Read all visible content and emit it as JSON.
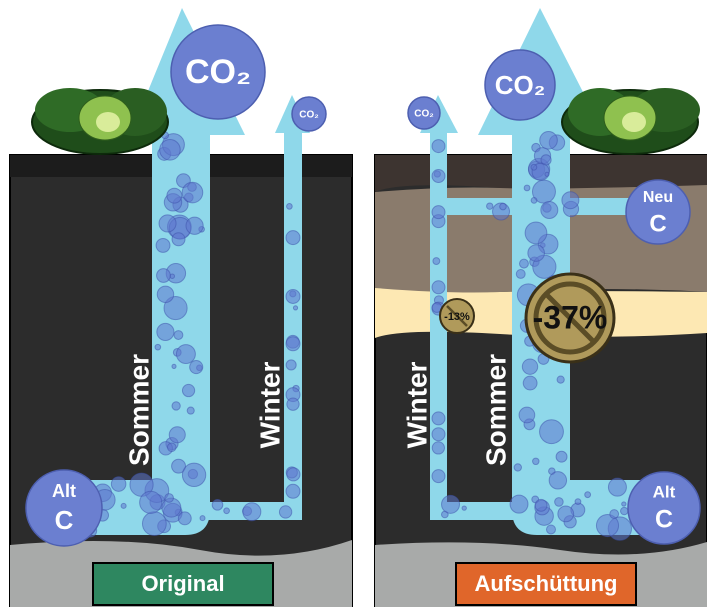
{
  "panels": [
    {
      "label": "Original",
      "co2_large": "CO₂",
      "co2_small": "CO₂",
      "pool_old": [
        "Alt",
        "C"
      ],
      "summer": "Sommer",
      "winter": "Winter"
    },
    {
      "label": "Aufschüttung",
      "co2_large": "CO₂",
      "co2_small": "CO₂",
      "pool_old": [
        "Alt",
        "C"
      ],
      "pool_new": [
        "Neu",
        "C"
      ],
      "summer": "Sommer",
      "winter": "Winter",
      "reduction_summer": "-37%",
      "reduction_winter": "-13%"
    }
  ]
}
